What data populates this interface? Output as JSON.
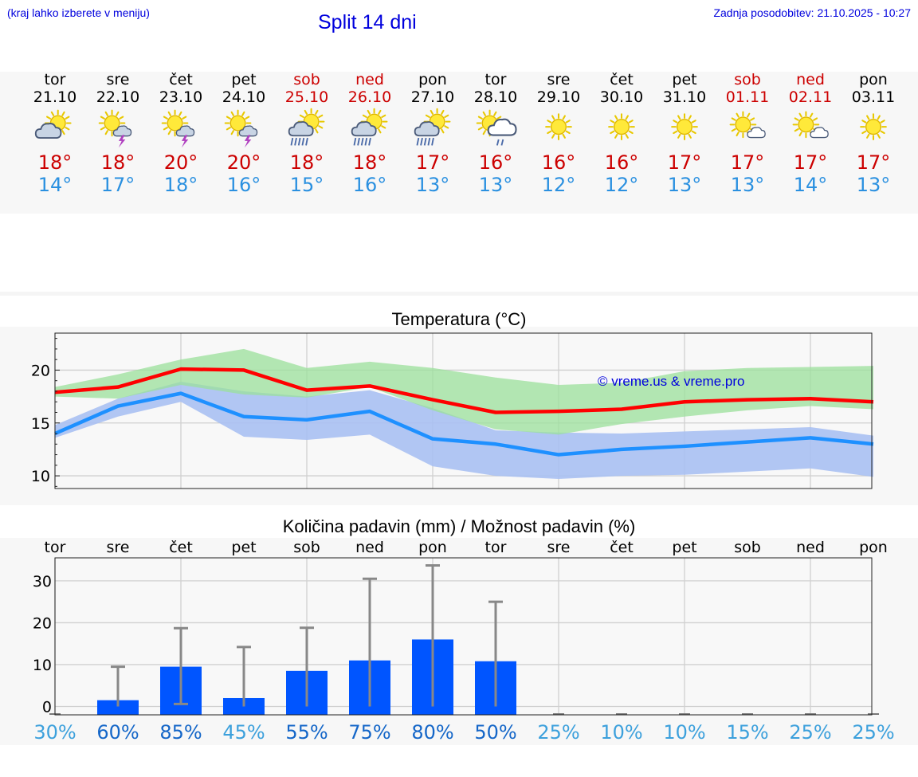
{
  "header": {
    "note": "(kraj lahko izberete v meniju)",
    "title": "Split 14 dni",
    "updated": "Zadnja posodobitev: 21.10.2025 - 10:27"
  },
  "colors": {
    "max_line": "#ff0000",
    "min_line": "#1e90ff",
    "max_band": "#9be09b",
    "min_band": "#a8c0f2",
    "bars": "#0055ff",
    "whisker": "#888888",
    "weekend": "#cc0000",
    "link": "#0000dd"
  },
  "days": [
    {
      "name": "tor",
      "date": "21.10",
      "weekend": false,
      "icon": "sun-cloud-icon",
      "tmax": "18°",
      "tmin": "14°"
    },
    {
      "name": "sre",
      "date": "22.10",
      "weekend": false,
      "icon": "sun-thunder-icon",
      "tmax": "18°",
      "tmin": "17°"
    },
    {
      "name": "čet",
      "date": "23.10",
      "weekend": false,
      "icon": "sun-thunder-icon",
      "tmax": "20°",
      "tmin": "18°"
    },
    {
      "name": "pet",
      "date": "24.10",
      "weekend": false,
      "icon": "sun-thunder-icon",
      "tmax": "20°",
      "tmin": "16°"
    },
    {
      "name": "sob",
      "date": "25.10",
      "weekend": true,
      "icon": "sun-rain-icon",
      "tmax": "18°",
      "tmin": "15°"
    },
    {
      "name": "ned",
      "date": "26.10",
      "weekend": true,
      "icon": "sun-rain-icon",
      "tmax": "18°",
      "tmin": "16°"
    },
    {
      "name": "pon",
      "date": "27.10",
      "weekend": false,
      "icon": "sun-rain-icon",
      "tmax": "17°",
      "tmin": "13°"
    },
    {
      "name": "tor",
      "date": "28.10",
      "weekend": false,
      "icon": "sun-cloud-drizzle-icon",
      "tmax": "16°",
      "tmin": "13°"
    },
    {
      "name": "sre",
      "date": "29.10",
      "weekend": false,
      "icon": "sun-icon",
      "tmax": "16°",
      "tmin": "12°"
    },
    {
      "name": "čet",
      "date": "30.10",
      "weekend": false,
      "icon": "sun-icon",
      "tmax": "16°",
      "tmin": "12°"
    },
    {
      "name": "pet",
      "date": "31.10",
      "weekend": false,
      "icon": "sun-icon",
      "tmax": "17°",
      "tmin": "13°"
    },
    {
      "name": "sob",
      "date": "01.11",
      "weekend": true,
      "icon": "sun-small-cloud-icon",
      "tmax": "17°",
      "tmin": "13°"
    },
    {
      "name": "ned",
      "date": "02.11",
      "weekend": true,
      "icon": "sun-small-cloud-icon",
      "tmax": "17°",
      "tmin": "14°"
    },
    {
      "name": "pon",
      "date": "03.11",
      "weekend": false,
      "icon": "sun-icon",
      "tmax": "17°",
      "tmin": "13°"
    }
  ],
  "chart_data": [
    {
      "type": "line",
      "title": "Temperatura (°C)",
      "x": [
        0,
        1,
        2,
        3,
        4,
        5,
        6,
        7,
        8,
        9,
        10,
        11,
        12,
        13
      ],
      "ylim": [
        8.8,
        23.5
      ],
      "yticks": [
        10,
        15,
        20
      ],
      "grid": true,
      "watermark": "© vreme.us & vreme.pro",
      "series": [
        {
          "name": "max",
          "values": [
            17.9,
            18.4,
            20.1,
            20.0,
            18.1,
            18.5,
            17.2,
            16.0,
            16.1,
            16.3,
            17.0,
            17.2,
            17.3,
            17.0
          ]
        },
        {
          "name": "max_low",
          "values": [
            17.5,
            17.3,
            18.6,
            17.7,
            17.4,
            18.4,
            16.2,
            14.4,
            13.9,
            14.9,
            15.6,
            16.2,
            16.6,
            16.3
          ]
        },
        {
          "name": "max_high",
          "values": [
            18.4,
            19.6,
            21.0,
            22.0,
            20.2,
            20.8,
            20.2,
            19.3,
            18.6,
            18.8,
            19.9,
            20.2,
            20.3,
            20.4
          ]
        },
        {
          "name": "min",
          "values": [
            14.0,
            16.6,
            17.8,
            15.6,
            15.3,
            16.1,
            13.5,
            13.0,
            12.0,
            12.5,
            12.8,
            13.2,
            13.6,
            13.0
          ]
        },
        {
          "name": "min_low",
          "values": [
            13.6,
            15.6,
            17.0,
            13.7,
            13.4,
            13.9,
            10.9,
            10.0,
            9.7,
            10.0,
            10.1,
            10.4,
            10.7,
            9.9
          ]
        },
        {
          "name": "min_high",
          "values": [
            14.8,
            17.3,
            18.9,
            18.0,
            17.5,
            18.1,
            16.4,
            14.3,
            14.1,
            14.0,
            14.2,
            14.4,
            14.6,
            13.8
          ]
        }
      ]
    },
    {
      "type": "bar",
      "title": "Količina padavin (mm) / Možnost padavin (%)",
      "categories": [
        "tor",
        "sre",
        "čet",
        "pet",
        "sob",
        "ned",
        "pon",
        "tor",
        "sre",
        "čet",
        "pet",
        "sob",
        "ned",
        "pon"
      ],
      "ylim": [
        -2,
        35.5
      ],
      "yticks": [
        0,
        10,
        20,
        30
      ],
      "grid": true,
      "series": [
        {
          "name": "amount_mm",
          "values": [
            0,
            1.5,
            9.5,
            2.0,
            8.5,
            11.0,
            16.0,
            10.8,
            0,
            0,
            0,
            0,
            0,
            0
          ]
        },
        {
          "name": "amount_max_mm",
          "values": [
            0,
            9.5,
            18.7,
            14.2,
            18.8,
            30.5,
            33.7,
            25.0,
            0,
            0,
            0,
            0,
            0,
            0
          ]
        },
        {
          "name": "amount_min_mm",
          "values": [
            0,
            0,
            0.6,
            0,
            0,
            0,
            0,
            0,
            0,
            0,
            0,
            0,
            0,
            0
          ]
        }
      ],
      "probabilities": [
        "30%",
        "60%",
        "85%",
        "45%",
        "55%",
        "75%",
        "80%",
        "50%",
        "25%",
        "10%",
        "10%",
        "15%",
        "25%",
        "25%"
      ]
    }
  ]
}
